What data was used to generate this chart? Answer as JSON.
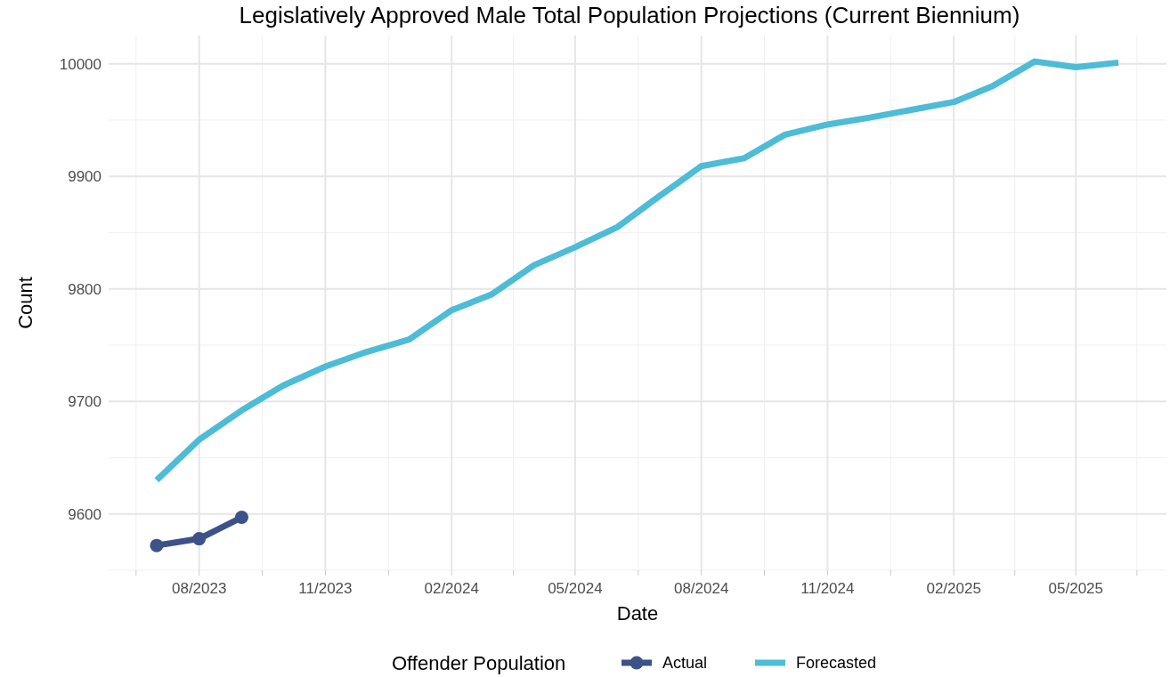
{
  "chart_data": {
    "type": "line",
    "title": "Legislatively Approved Male Total Population Projections (Current Biennium)",
    "xlabel": "Date",
    "ylabel": "Count",
    "legend_title": "Offender Population",
    "legend": "bottom",
    "grid": true,
    "line_style": "solid",
    "xlim": [
      "2023-05-27",
      "2025-07-06"
    ],
    "ylim": [
      9550,
      10025
    ],
    "xticks": [
      {
        "value": "2023-08-01",
        "label": "08/2023"
      },
      {
        "value": "2023-11-01",
        "label": "11/2023"
      },
      {
        "value": "2024-02-01",
        "label": "02/2024"
      },
      {
        "value": "2024-05-01",
        "label": "05/2024"
      },
      {
        "value": "2024-08-01",
        "label": "08/2024"
      },
      {
        "value": "2024-11-01",
        "label": "11/2024"
      },
      {
        "value": "2025-02-01",
        "label": "02/2025"
      },
      {
        "value": "2025-05-01",
        "label": "05/2025"
      }
    ],
    "yticks": [
      9600,
      9700,
      9800,
      9900,
      10000
    ],
    "series": [
      {
        "name": "Actual",
        "color": "#3d5289",
        "marker": "circle",
        "x": [
          "2023-07-01",
          "2023-08-01",
          "2023-09-01"
        ],
        "values": [
          9572,
          9578,
          9597
        ]
      },
      {
        "name": "Forecasted",
        "color": "#4dbcd6",
        "marker": "none",
        "x": [
          "2023-07-01",
          "2023-08-01",
          "2023-09-01",
          "2023-10-01",
          "2023-11-01",
          "2023-12-01",
          "2024-01-01",
          "2024-02-01",
          "2024-03-01",
          "2024-04-01",
          "2024-05-01",
          "2024-06-01",
          "2024-07-01",
          "2024-08-01",
          "2024-09-01",
          "2024-10-01",
          "2024-11-01",
          "2024-12-01",
          "2025-01-01",
          "2025-02-01",
          "2025-03-01",
          "2025-04-01",
          "2025-05-01",
          "2025-06-01"
        ],
        "values": [
          9630,
          9666,
          9692,
          9714,
          9731,
          9744,
          9755,
          9781,
          9795,
          9821,
          9837,
          9855,
          9882,
          9909,
          9916,
          9937,
          9946,
          9952,
          9959,
          9966,
          9980,
          10002,
          9997,
          10001
        ]
      }
    ]
  }
}
